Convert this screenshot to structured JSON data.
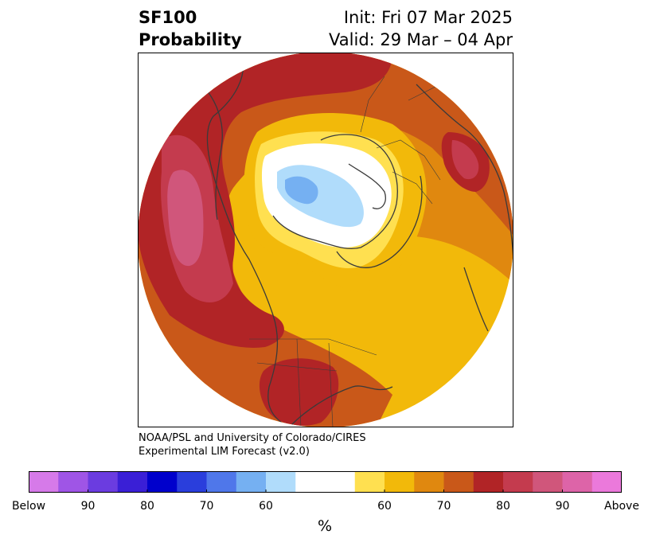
{
  "header": {
    "variable": "SF100",
    "product": "Probability",
    "init": "Init: Fri 07 Mar 2025",
    "valid": "Valid: 29 Mar – 04 Apr"
  },
  "credit": {
    "line1": "NOAA/PSL and University of Colorado/CIRES",
    "line2": "Experimental LIM Forecast (v2.0)"
  },
  "colorbar": {
    "unit": "%",
    "colors": [
      "#d67ae9",
      "#9f55e6",
      "#6b3ce0",
      "#3a1fd6",
      "#0000cc",
      "#2a3edc",
      "#4f77ea",
      "#75b0f2",
      "#b0dcfb",
      "#ffffff",
      "#ffffff",
      "#ffe050",
      "#f2b90a",
      "#e0880f",
      "#c95819",
      "#b12426",
      "#c43b4e",
      "#d0567b",
      "#dd64a8",
      "#eb79db"
    ],
    "ticks": [
      "Below",
      "90",
      "80",
      "70",
      "60",
      "60",
      "70",
      "80",
      "90",
      "Above"
    ],
    "tick_fractions": [
      0,
      0.1,
      0.2,
      0.3,
      0.4,
      0.6,
      0.7,
      0.8,
      0.9,
      1.0
    ]
  }
}
